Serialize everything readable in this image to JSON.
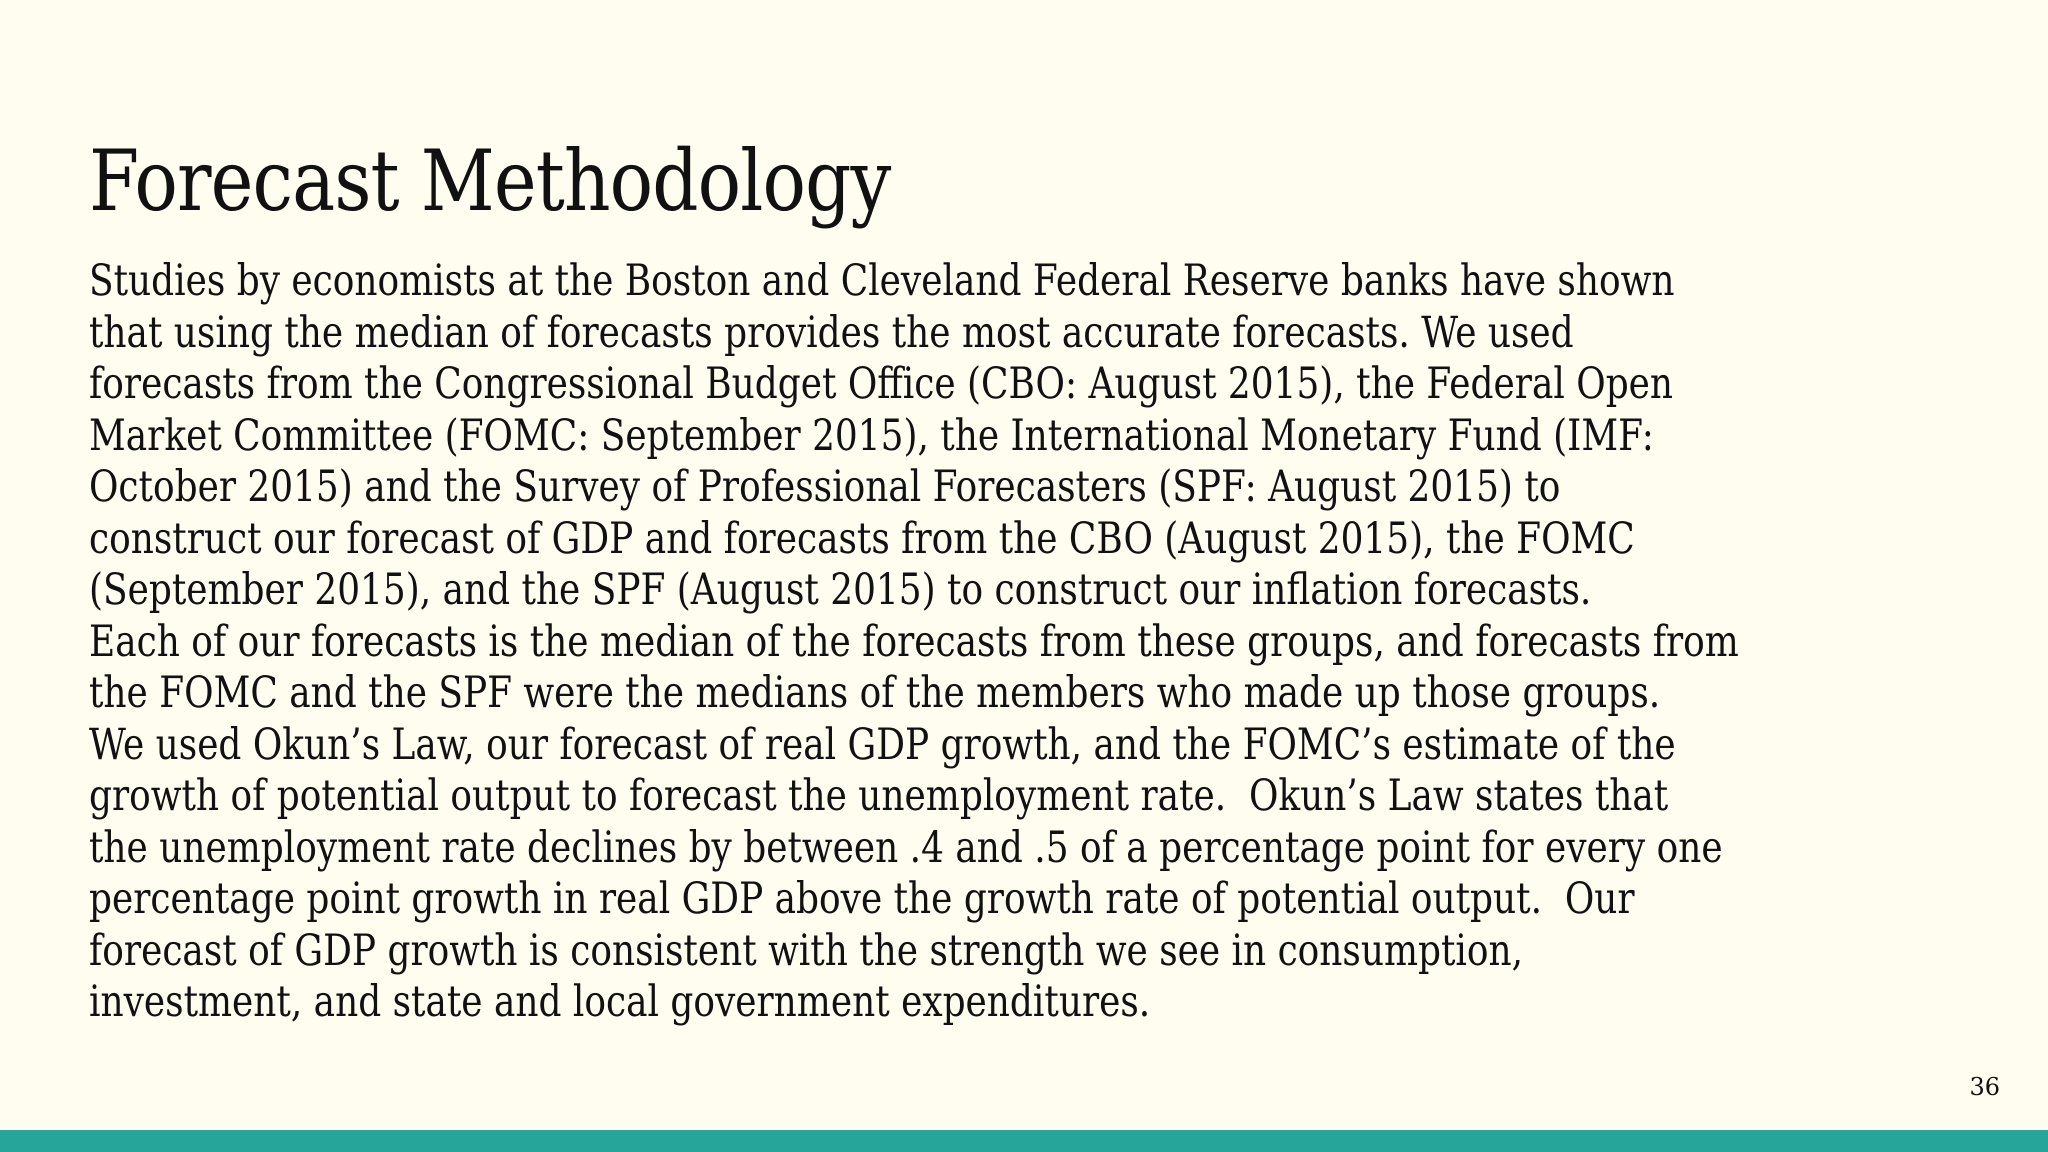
{
  "slide": {
    "title": "Forecast Methodology",
    "body_lines": [
      "Studies by economists at the Boston and Cleveland Federal Reserve banks have shown",
      "that using the median of forecasts provides the most accurate forecasts. We used",
      "forecasts from the Congressional Budget Office (CBO: August 2015), the Federal Open",
      "Market Committee (FOMC: September 2015), the International Monetary Fund (IMF:",
      "October 2015) and the Survey of Professional Forecasters (SPF: August 2015) to",
      "construct our forecast of GDP and forecasts from the CBO (August 2015), the FOMC",
      "(September 2015), and the SPF (August 2015) to construct our inflation forecasts.",
      "Each of our forecasts is the median of the forecasts from these groups, and forecasts from",
      "the FOMC and the SPF were the medians of the members who made up those groups.",
      "We used Okun’s Law, our forecast of real GDP growth, and the FOMC’s estimate of the",
      "growth of potential output to forecast the unemployment rate.  Okun’s Law states that",
      "the unemployment rate declines by between .4 and .5 of a percentage point for every one",
      "percentage point growth in real GDP above the growth rate of potential output.  Our",
      "forecast of GDP growth is consistent with the strength we see in consumption,",
      "investment, and state and local government expenditures."
    ],
    "page_number": "36"
  },
  "colors": {
    "background": "#fffcf0",
    "text": "#111111",
    "footer_bar": "#26a69a"
  }
}
